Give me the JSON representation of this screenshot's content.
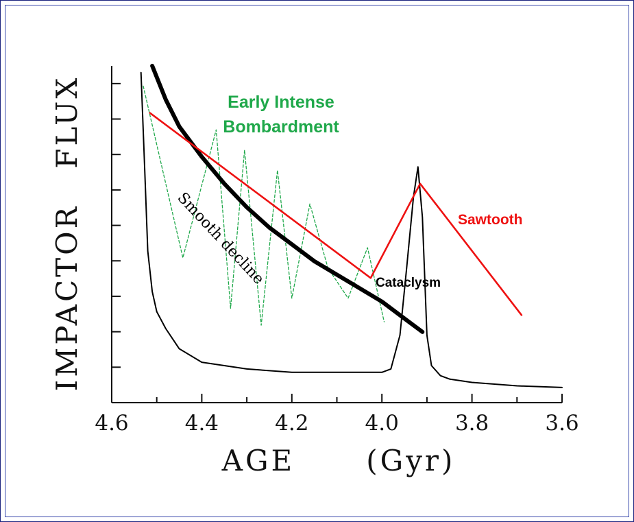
{
  "chart_data": {
    "type": "line",
    "xlabel": "AGE      (Gyr)",
    "ylabel": "IMPACTOR   FLUX",
    "xlim": [
      4.6,
      3.6
    ],
    "ylim": [
      0,
      1
    ],
    "x_ticks": [
      "4.6",
      "4.4",
      "4.2",
      "4.0",
      "3.8",
      "3.6"
    ],
    "x_tick_values": [
      4.6,
      4.4,
      4.2,
      4.0,
      3.8,
      3.6
    ],
    "y_ticks_count": 9,
    "y_scale_labels": "none",
    "grid": false,
    "colors": {
      "early": "#1fa84a",
      "sawtooth": "#ee1111",
      "smooth": "#000000",
      "cataclysm": "#000000"
    },
    "annotations": {
      "early": "Early Intense\nBombardment",
      "smooth": "Smooth decline",
      "cataclysm": "Cataclysm",
      "sawtooth": "Sawtooth"
    },
    "series": [
      {
        "name": "Early Intense Bombardment",
        "style": "dashed-thin",
        "color": "#1fa84a",
        "x": [
          4.53,
          4.442,
          4.368,
          4.336,
          4.305,
          4.268,
          4.232,
          4.2,
          4.16,
          4.12,
          4.075,
          4.032,
          3.995
        ],
        "y": [
          0.94,
          0.43,
          0.81,
          0.28,
          0.75,
          0.23,
          0.69,
          0.31,
          0.59,
          0.4,
          0.31,
          0.46,
          0.24
        ]
      },
      {
        "name": "Smooth decline",
        "style": "thick",
        "color": "#000000",
        "x": [
          4.51,
          4.48,
          4.45,
          4.4,
          4.35,
          4.3,
          4.25,
          4.2,
          4.15,
          4.1,
          4.05,
          4.0,
          3.95,
          3.91
        ],
        "y": [
          1.0,
          0.9,
          0.82,
          0.73,
          0.65,
          0.58,
          0.52,
          0.47,
          0.42,
          0.38,
          0.34,
          0.3,
          0.25,
          0.21
        ]
      },
      {
        "name": "Cataclysm",
        "style": "thin",
        "color": "#000000",
        "x": [
          4.535,
          4.527,
          4.52,
          4.51,
          4.5,
          4.48,
          4.45,
          4.4,
          4.3,
          4.2,
          4.1,
          4.0,
          3.98,
          3.96,
          3.945,
          3.93,
          3.92,
          3.91,
          3.9,
          3.89,
          3.87,
          3.85,
          3.8,
          3.7,
          3.6
        ],
        "y": [
          0.98,
          0.7,
          0.45,
          0.33,
          0.27,
          0.22,
          0.16,
          0.12,
          0.1,
          0.09,
          0.09,
          0.09,
          0.1,
          0.2,
          0.4,
          0.61,
          0.7,
          0.55,
          0.2,
          0.11,
          0.08,
          0.07,
          0.06,
          0.05,
          0.045
        ]
      },
      {
        "name": "Sawtooth",
        "style": "medium",
        "color": "#ee1111",
        "x": [
          4.515,
          4.025,
          3.915,
          3.69
        ],
        "y": [
          0.86,
          0.37,
          0.65,
          0.26
        ]
      }
    ]
  }
}
